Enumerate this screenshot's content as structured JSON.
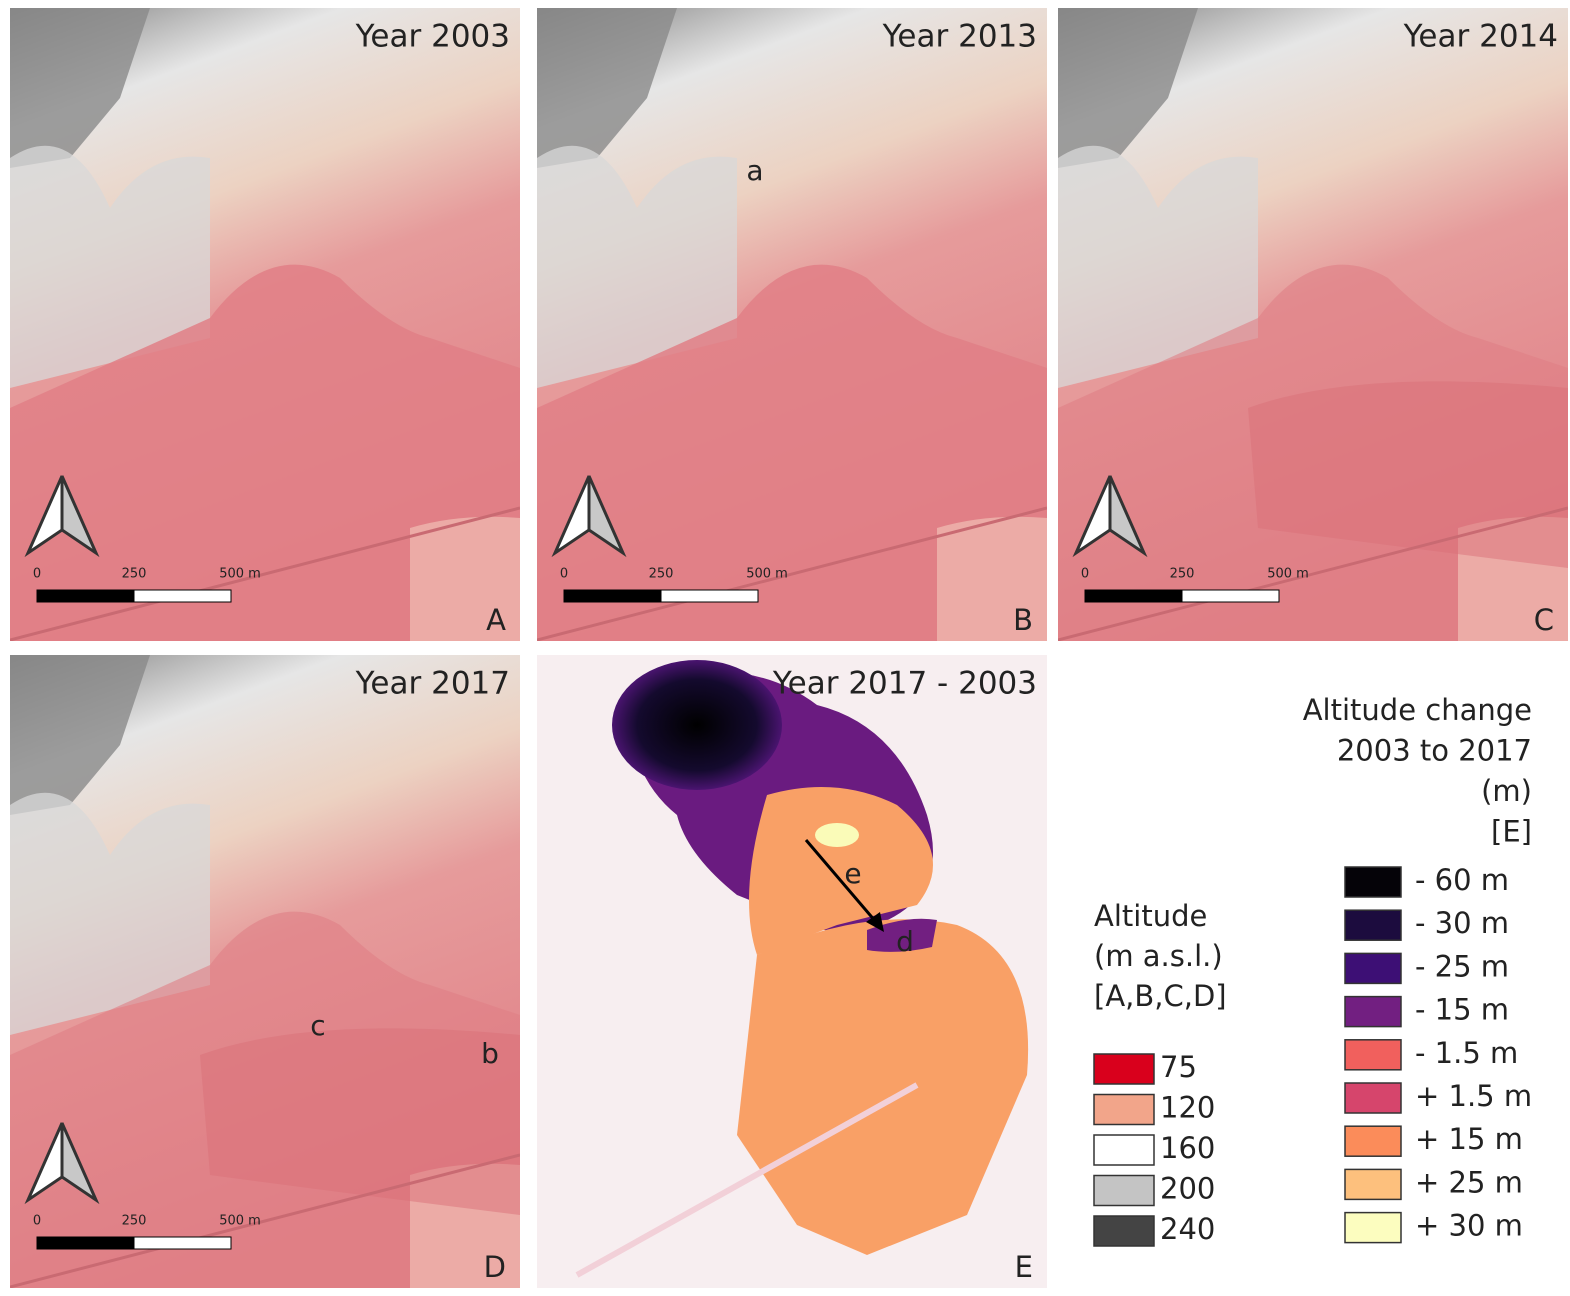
{
  "panels": [
    {
      "title": "Year 2003",
      "letter": "A",
      "scale_labels": [
        "0",
        "250",
        "500 m"
      ],
      "annotations": []
    },
    {
      "title": "Year 2013",
      "letter": "B",
      "scale_labels": [
        "0",
        "250",
        "500 m"
      ],
      "annotations": [
        "a"
      ]
    },
    {
      "title": "Year 2014",
      "letter": "C",
      "scale_labels": [
        "0",
        "250",
        "500 m"
      ],
      "annotations": []
    },
    {
      "title": "Year 2017",
      "letter": "D",
      "scale_labels": [
        "0",
        "250",
        "500 m"
      ],
      "annotations": [
        "c",
        "b"
      ]
    },
    {
      "title": "Year 2017 - 2003",
      "letter": "E",
      "annotations": [
        "e",
        "d"
      ]
    }
  ],
  "legend_altitude": {
    "title": [
      "Altitude",
      "(m a.s.l.)",
      "[A,B,C,D]"
    ],
    "items": [
      {
        "label": "75",
        "color": "#d9001c"
      },
      {
        "label": "120",
        "color": "#f2a58a"
      },
      {
        "label": "160",
        "color": "#ffffff"
      },
      {
        "label": "200",
        "color": "#c4c4c4"
      },
      {
        "label": "240",
        "color": "#444444"
      }
    ]
  },
  "legend_change": {
    "title": [
      "Altitude change",
      "2003 to 2017",
      "(m)",
      "[E]"
    ],
    "items": [
      {
        "label": "- 60 m",
        "color": "#050308"
      },
      {
        "label": "- 30 m",
        "color": "#1c0c3e"
      },
      {
        "label": "- 25 m",
        "color": "#3d0f75"
      },
      {
        "label": "- 15 m",
        "color": "#721f81"
      },
      {
        "label": "- 1.5 m",
        "color": "#f1605d"
      },
      {
        "label": "+ 1.5 m",
        "color": "#d6456c"
      },
      {
        "label": "+ 15 m",
        "color": "#fb8c5a"
      },
      {
        "label": "+ 25 m",
        "color": "#fdc07d"
      },
      {
        "label": "+ 30 m",
        "color": "#fcfdbf"
      }
    ]
  }
}
